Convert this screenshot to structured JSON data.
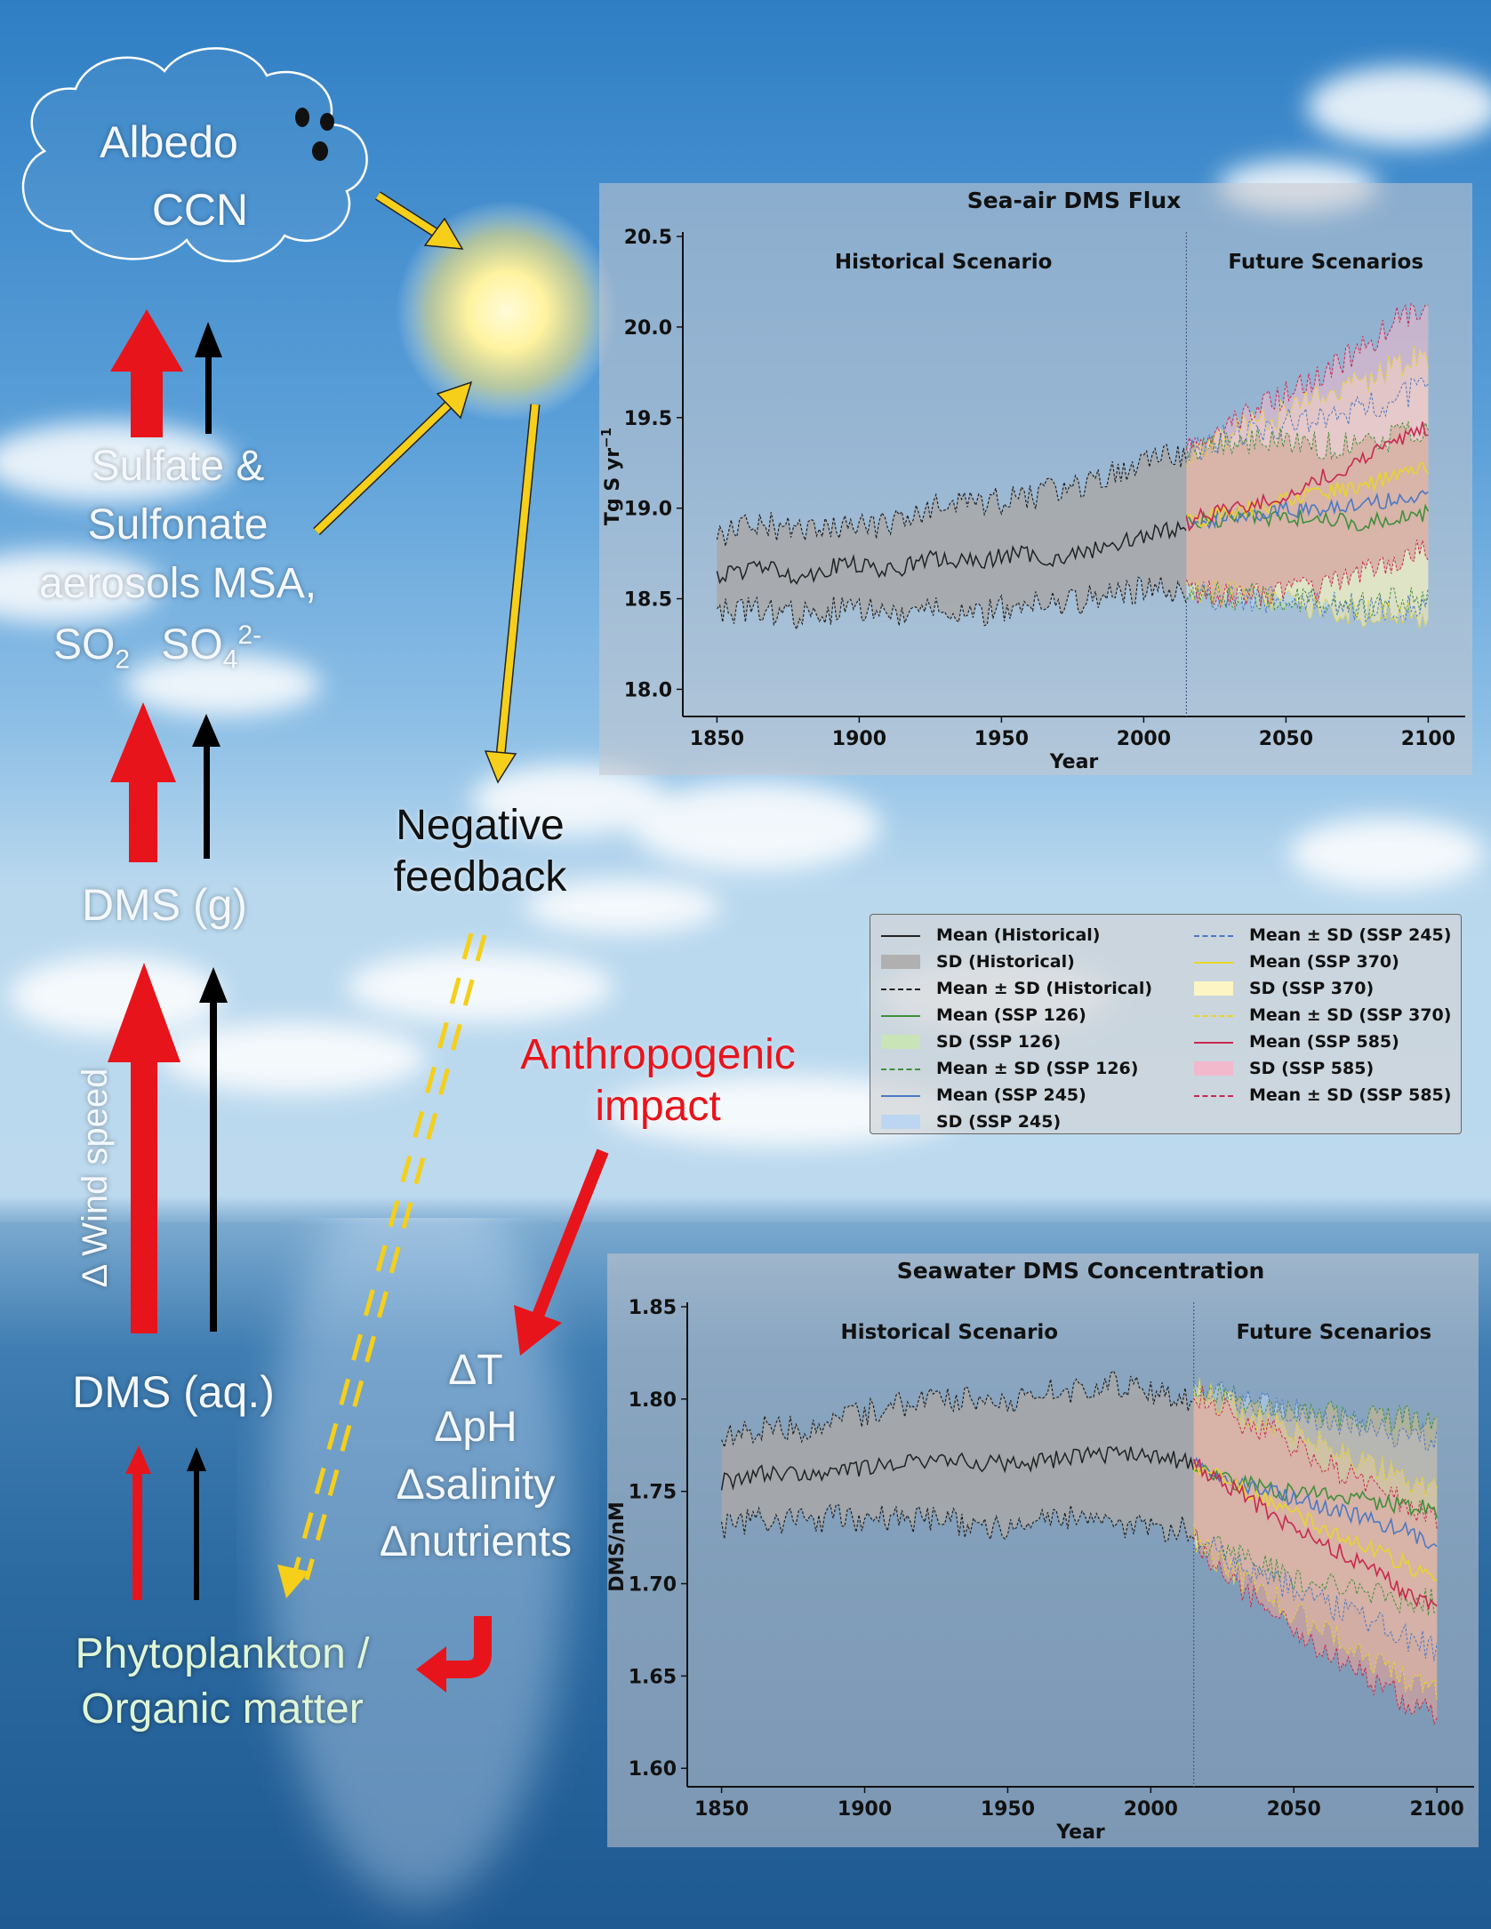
{
  "diagram": {
    "cloud_labels": [
      "Albedo",
      "CCN"
    ],
    "aerosol_labels": [
      "Sulfate &",
      "Sulfonate",
      "aerosols MSA,"
    ],
    "so2_label": "SO",
    "so2_sub": "2",
    "so4_label": "SO",
    "so4_sub": "4",
    "so4_sup": "2-",
    "dms_gas": "DMS (g)",
    "dms_aq": "DMS (aq.)",
    "wind_speed": "Δ Wind speed",
    "negative_feedback": [
      "Negative",
      "feedback"
    ],
    "anthropogenic": [
      "Anthropogenic",
      "impact"
    ],
    "drivers": [
      "ΔT",
      "ΔpH",
      "Δsalinity",
      "Δnutrients"
    ],
    "phyto": [
      "Phytoplankton /",
      "Organic matter"
    ],
    "colors": {
      "red_arrow": "#e8141b",
      "yellow_arrow": "#f5cf1a",
      "black_arrow": "#000000"
    }
  },
  "legend": {
    "items": [
      {
        "label": "Mean (Historical)",
        "style": "line",
        "color": "#222222"
      },
      {
        "label": "SD (Historical)",
        "style": "fill",
        "color": "#b0b0b0"
      },
      {
        "label": "Mean ± SD (Historical)",
        "style": "dash",
        "color": "#222222"
      },
      {
        "label": "Mean (SSP 126)",
        "style": "line",
        "color": "#3f8f3a"
      },
      {
        "label": "SD (SSP 126)",
        "style": "fill",
        "color": "#c9e4b6"
      },
      {
        "label": "Mean ± SD (SSP 126)",
        "style": "dash",
        "color": "#3f8f3a"
      },
      {
        "label": "Mean (SSP 245)",
        "style": "line",
        "color": "#4a79c4"
      },
      {
        "label": "SD (SSP 245)",
        "style": "fill",
        "color": "#bcd6f2"
      },
      {
        "label": "Mean ± SD (SSP 245)",
        "style": "dash",
        "color": "#4a79c4"
      },
      {
        "label": "Mean (SSP 370)",
        "style": "line",
        "color": "#e8d52a"
      },
      {
        "label": "SD (SSP 370)",
        "style": "fill",
        "color": "#fdf6c4"
      },
      {
        "label": "Mean ± SD (SSP 370)",
        "style": "dash",
        "color": "#e8d52a"
      },
      {
        "label": "Mean (SSP 585)",
        "style": "line",
        "color": "#c8284f"
      },
      {
        "label": "SD (SSP 585)",
        "style": "fill",
        "color": "#f2b8cc"
      },
      {
        "label": "Mean ± SD (SSP 585)",
        "style": "dash",
        "color": "#c8284f"
      }
    ]
  },
  "chart_data": [
    {
      "type": "line",
      "title": "Sea-air DMS Flux",
      "xlabel": "Year",
      "ylabel": "Tg S yr",
      "ylabel_sup": "−1",
      "xlim": [
        1838,
        2113
      ],
      "ylim": [
        17.85,
        20.5
      ],
      "xticks": [
        1850,
        1900,
        1950,
        2000,
        2050,
        2100
      ],
      "yticks": [
        18.0,
        18.5,
        19.0,
        19.5,
        20.0,
        20.5
      ],
      "ytick_labels": [
        "18.0",
        "18.5",
        "19.0",
        "19.5",
        "20.0",
        "20.5"
      ],
      "divider_year": 2015,
      "annotations": [
        "Historical Scenario",
        "Future Scenarios"
      ],
      "historical": {
        "x": [
          1850,
          1865,
          1880,
          1895,
          1910,
          1925,
          1940,
          1955,
          1970,
          1985,
          2000,
          2015
        ],
        "mean": [
          18.62,
          18.68,
          18.62,
          18.7,
          18.65,
          18.72,
          18.7,
          18.75,
          18.72,
          18.78,
          18.85,
          18.9
        ],
        "sd_upper": [
          18.85,
          18.93,
          18.85,
          18.9,
          18.9,
          19.0,
          19.02,
          19.05,
          19.1,
          19.15,
          19.28,
          19.3
        ],
        "sd_lower": [
          18.42,
          18.45,
          18.4,
          18.45,
          18.42,
          18.45,
          18.42,
          18.45,
          18.48,
          18.5,
          18.55,
          18.55
        ]
      },
      "future": {
        "x": [
          2015,
          2030,
          2045,
          2060,
          2075,
          2090,
          2100
        ],
        "series": [
          {
            "name": "SSP 126",
            "mean": [
              18.92,
              18.95,
              18.95,
              18.95,
              18.92,
              18.95,
              18.97
            ],
            "sd_upper": [
              19.3,
              19.35,
              19.38,
              19.35,
              19.35,
              19.4,
              19.45
            ],
            "sd_lower": [
              18.55,
              18.52,
              18.5,
              18.5,
              18.45,
              18.5,
              18.5
            ]
          },
          {
            "name": "SSP 245",
            "mean": [
              18.92,
              18.95,
              18.98,
              19.0,
              19.02,
              19.05,
              19.08
            ],
            "sd_upper": [
              19.3,
              19.4,
              19.45,
              19.5,
              19.55,
              19.6,
              19.7
            ],
            "sd_lower": [
              18.55,
              18.5,
              18.5,
              18.48,
              18.45,
              18.45,
              18.45
            ]
          },
          {
            "name": "SSP 370",
            "mean": [
              18.92,
              18.98,
              19.02,
              19.08,
              19.12,
              19.18,
              19.22
            ],
            "sd_upper": [
              19.3,
              19.42,
              19.5,
              19.6,
              19.68,
              19.8,
              19.85
            ],
            "sd_lower": [
              18.55,
              18.52,
              18.5,
              18.45,
              18.42,
              18.4,
              18.42
            ]
          },
          {
            "name": "SSP 585",
            "mean": [
              18.92,
              19.0,
              19.05,
              19.15,
              19.25,
              19.38,
              19.45
            ],
            "sd_upper": [
              19.32,
              19.48,
              19.58,
              19.72,
              19.85,
              20.05,
              20.15
            ],
            "sd_lower": [
              18.55,
              18.52,
              18.52,
              18.55,
              18.62,
              18.7,
              18.78
            ]
          }
        ]
      }
    },
    {
      "type": "line",
      "title": "Seawater DMS Concentration",
      "xlabel": "Year",
      "ylabel": "DMS/nM",
      "ylabel_sup": "",
      "xlim": [
        1838,
        2113
      ],
      "ylim": [
        1.59,
        1.85
      ],
      "xticks": [
        1850,
        1900,
        1950,
        2000,
        2050,
        2100
      ],
      "yticks": [
        1.6,
        1.65,
        1.7,
        1.75,
        1.8,
        1.85
      ],
      "ytick_labels": [
        "1.60",
        "1.65",
        "1.70",
        "1.75",
        "1.80",
        "1.85"
      ],
      "divider_year": 2015,
      "annotations": [
        "Historical Scenario",
        "Future Scenarios"
      ],
      "historical": {
        "x": [
          1850,
          1865,
          1880,
          1895,
          1910,
          1925,
          1940,
          1955,
          1970,
          1985,
          2000,
          2015
        ],
        "mean": [
          1.755,
          1.76,
          1.758,
          1.762,
          1.765,
          1.768,
          1.765,
          1.765,
          1.768,
          1.77,
          1.77,
          1.765
        ],
        "sd_upper": [
          1.78,
          1.785,
          1.782,
          1.79,
          1.795,
          1.8,
          1.8,
          1.8,
          1.805,
          1.808,
          1.805,
          1.8
        ],
        "sd_lower": [
          1.73,
          1.735,
          1.735,
          1.735,
          1.735,
          1.735,
          1.73,
          1.73,
          1.735,
          1.732,
          1.73,
          1.73
        ]
      },
      "future": {
        "x": [
          2015,
          2030,
          2045,
          2060,
          2075,
          2090,
          2100
        ],
        "series": [
          {
            "name": "SSP 126",
            "mean": [
              1.765,
              1.755,
              1.75,
              1.748,
              1.745,
              1.742,
              1.74
            ],
            "sd_upper": [
              1.805,
              1.8,
              1.795,
              1.792,
              1.79,
              1.79,
              1.79
            ],
            "sd_lower": [
              1.725,
              1.715,
              1.705,
              1.7,
              1.695,
              1.69,
              1.69
            ]
          },
          {
            "name": "SSP 245",
            "mean": [
              1.765,
              1.755,
              1.748,
              1.742,
              1.735,
              1.728,
              1.722
            ],
            "sd_upper": [
              1.805,
              1.8,
              1.795,
              1.79,
              1.785,
              1.78,
              1.78
            ],
            "sd_lower": [
              1.725,
              1.71,
              1.7,
              1.69,
              1.68,
              1.67,
              1.665
            ]
          },
          {
            "name": "SSP 370",
            "mean": [
              1.765,
              1.752,
              1.742,
              1.73,
              1.72,
              1.71,
              1.7
            ],
            "sd_upper": [
              1.805,
              1.795,
              1.785,
              1.775,
              1.765,
              1.755,
              1.75
            ],
            "sd_lower": [
              1.725,
              1.705,
              1.69,
              1.675,
              1.66,
              1.648,
              1.64
            ]
          },
          {
            "name": "SSP 585",
            "mean": [
              1.765,
              1.75,
              1.735,
              1.722,
              1.71,
              1.695,
              1.685
            ],
            "sd_upper": [
              1.805,
              1.79,
              1.78,
              1.765,
              1.755,
              1.742,
              1.735
            ],
            "sd_lower": [
              1.725,
              1.7,
              1.685,
              1.665,
              1.65,
              1.635,
              1.628
            ]
          }
        ]
      }
    }
  ]
}
